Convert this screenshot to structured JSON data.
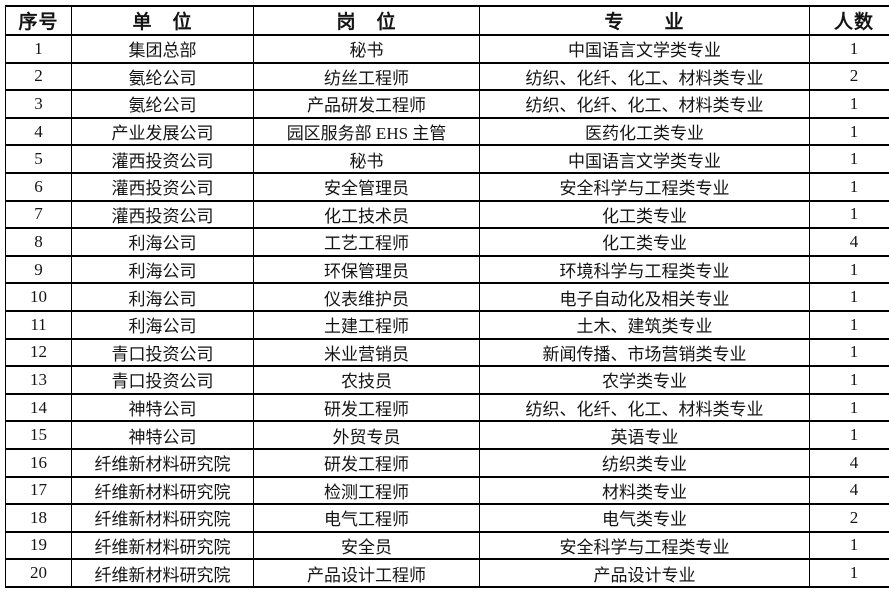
{
  "table": {
    "name": "recruitment-positions-table",
    "headers": [
      {
        "key": "index",
        "label": "序号"
      },
      {
        "key": "unit",
        "label": "单　位"
      },
      {
        "key": "position",
        "label": "岗　位"
      },
      {
        "key": "major",
        "label": "专　　业"
      },
      {
        "key": "count",
        "label": "人数"
      }
    ],
    "rows": [
      [
        "1",
        "集团总部",
        "秘书",
        "中国语言文学类专业",
        "1"
      ],
      [
        "2",
        "氨纶公司",
        "纺丝工程师",
        "纺织、化纤、化工、材料类专业",
        "2"
      ],
      [
        "3",
        "氨纶公司",
        "产品研发工程师",
        "纺织、化纤、化工、材料类专业",
        "1"
      ],
      [
        "4",
        "产业发展公司",
        "园区服务部 EHS 主管",
        "医药化工类专业",
        "1"
      ],
      [
        "5",
        "灌西投资公司",
        "秘书",
        "中国语言文学类专业",
        "1"
      ],
      [
        "6",
        "灌西投资公司",
        "安全管理员",
        "安全科学与工程类专业",
        "1"
      ],
      [
        "7",
        "灌西投资公司",
        "化工技术员",
        "化工类专业",
        "1"
      ],
      [
        "8",
        "利海公司",
        "工艺工程师",
        "化工类专业",
        "4"
      ],
      [
        "9",
        "利海公司",
        "环保管理员",
        "环境科学与工程类专业",
        "1"
      ],
      [
        "10",
        "利海公司",
        "仪表维护员",
        "电子自动化及相关专业",
        "1"
      ],
      [
        "11",
        "利海公司",
        "土建工程师",
        "土木、建筑类专业",
        "1"
      ],
      [
        "12",
        "青口投资公司",
        "米业营销员",
        "新闻传播、市场营销类专业",
        "1"
      ],
      [
        "13",
        "青口投资公司",
        "农技员",
        "农学类专业",
        "1"
      ],
      [
        "14",
        "神特公司",
        "研发工程师",
        "纺织、化纤、化工、材料类专业",
        "1"
      ],
      [
        "15",
        "神特公司",
        "外贸专员",
        "英语专业",
        "1"
      ],
      [
        "16",
        "纤维新材料研究院",
        "研发工程师",
        "纺织类专业",
        "4"
      ],
      [
        "17",
        "纤维新材料研究院",
        "检测工程师",
        "材料类专业",
        "4"
      ],
      [
        "18",
        "纤维新材料研究院",
        "电气工程师",
        "电气类专业",
        "2"
      ],
      [
        "19",
        "纤维新材料研究院",
        "安全员",
        "安全科学与工程类专业",
        "1"
      ],
      [
        "20",
        "纤维新材料研究院",
        "产品设计工程师",
        "产品设计专业",
        "1"
      ]
    ],
    "colors": {
      "border": "#000000",
      "text": "#141414",
      "background": "#ffffff"
    }
  }
}
